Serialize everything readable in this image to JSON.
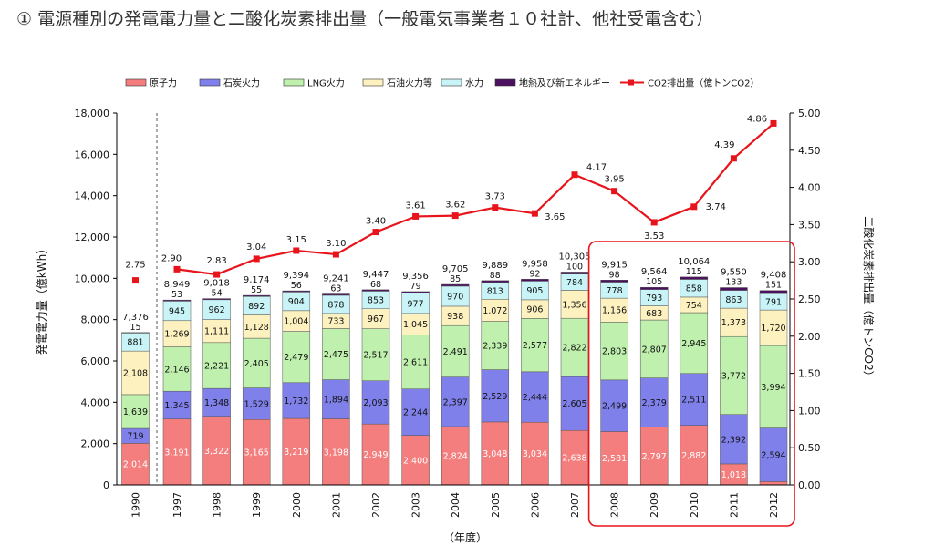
{
  "page_title": "① 電源種別の発電電力量と二酸化炭素排出量（一般電気事業者１０社計、他社受電含む）",
  "chart_data": {
    "type": "bar",
    "stacked": true,
    "categories": [
      "1990",
      "1997",
      "1998",
      "1999",
      "2000",
      "2001",
      "2002",
      "2003",
      "2004",
      "2005",
      "2006",
      "2007",
      "2008",
      "2009",
      "2010",
      "2011",
      "2012"
    ],
    "series": [
      {
        "name": "原子力",
        "color": "#f47d7d",
        "values": [
          2014,
          3191,
          3322,
          3165,
          3219,
          3198,
          2949,
          2400,
          2824,
          3048,
          3034,
          2638,
          2581,
          2797,
          2882,
          1018,
          159
        ]
      },
      {
        "name": "石炭火力",
        "color": "#8080ea",
        "values": [
          719,
          1345,
          1348,
          1529,
          1732,
          1894,
          2093,
          2244,
          2397,
          2529,
          2444,
          2605,
          2499,
          2379,
          2511,
          2392,
          2594
        ]
      },
      {
        "name": "LNG火力",
        "color": "#bff0ae",
        "values": [
          1639,
          2146,
          2221,
          2405,
          2479,
          2475,
          2517,
          2611,
          2491,
          2339,
          2577,
          2822,
          2803,
          2807,
          2945,
          3772,
          3994
        ]
      },
      {
        "name": "石油火力等",
        "color": "#fdf2bf",
        "values": [
          2108,
          1269,
          1111,
          1128,
          1004,
          733,
          967,
          1045,
          938,
          1072,
          906,
          1356,
          1156,
          683,
          754,
          1373,
          1720
        ]
      },
      {
        "name": "水力",
        "color": "#c9f4f7",
        "values": [
          881,
          945,
          962,
          892,
          904,
          878,
          853,
          977,
          970,
          813,
          905,
          784,
          778,
          793,
          858,
          863,
          791
        ]
      },
      {
        "name": "地熱及び新エネルギー",
        "color": "#4b1060",
        "values": [
          15,
          53,
          54,
          55,
          56,
          63,
          68,
          79,
          85,
          88,
          92,
          100,
          98,
          105,
          115,
          133,
          151
        ]
      }
    ],
    "totals": [
      7376,
      8949,
      9018,
      9174,
      9394,
      9241,
      9447,
      9356,
      9705,
      9889,
      9958,
      10305,
      9915,
      9564,
      10064,
      9550,
      9408
    ],
    "line_series": {
      "name": "CO2排出量（億トンCO2）",
      "color": "#e8141c",
      "values": [
        2.75,
        2.9,
        2.83,
        3.04,
        3.15,
        3.1,
        3.4,
        3.61,
        3.62,
        3.73,
        3.65,
        4.17,
        3.95,
        3.53,
        3.74,
        4.39,
        4.86
      ]
    },
    "ylabel": "発電電力量（億kWh）",
    "y2label": "二酸化炭素排出量（億トンCO2）",
    "xlabel": "（年度）",
    "ylim": [
      0,
      18000
    ],
    "yticks": [
      "0",
      "2,000",
      "4,000",
      "6,000",
      "8,000",
      "10,000",
      "12,000",
      "14,000",
      "16,000",
      "18,000"
    ],
    "y2lim": [
      0,
      5
    ],
    "y2ticks": [
      "0.00",
      "0.50",
      "1.00",
      "1.50",
      "2.00",
      "2.50",
      "3.00",
      "3.50",
      "4.00",
      "4.50",
      "5.00"
    ],
    "legend_position": "top",
    "highlight_range": [
      "2008",
      "2012"
    ],
    "highlight_color": "#e8141c"
  }
}
